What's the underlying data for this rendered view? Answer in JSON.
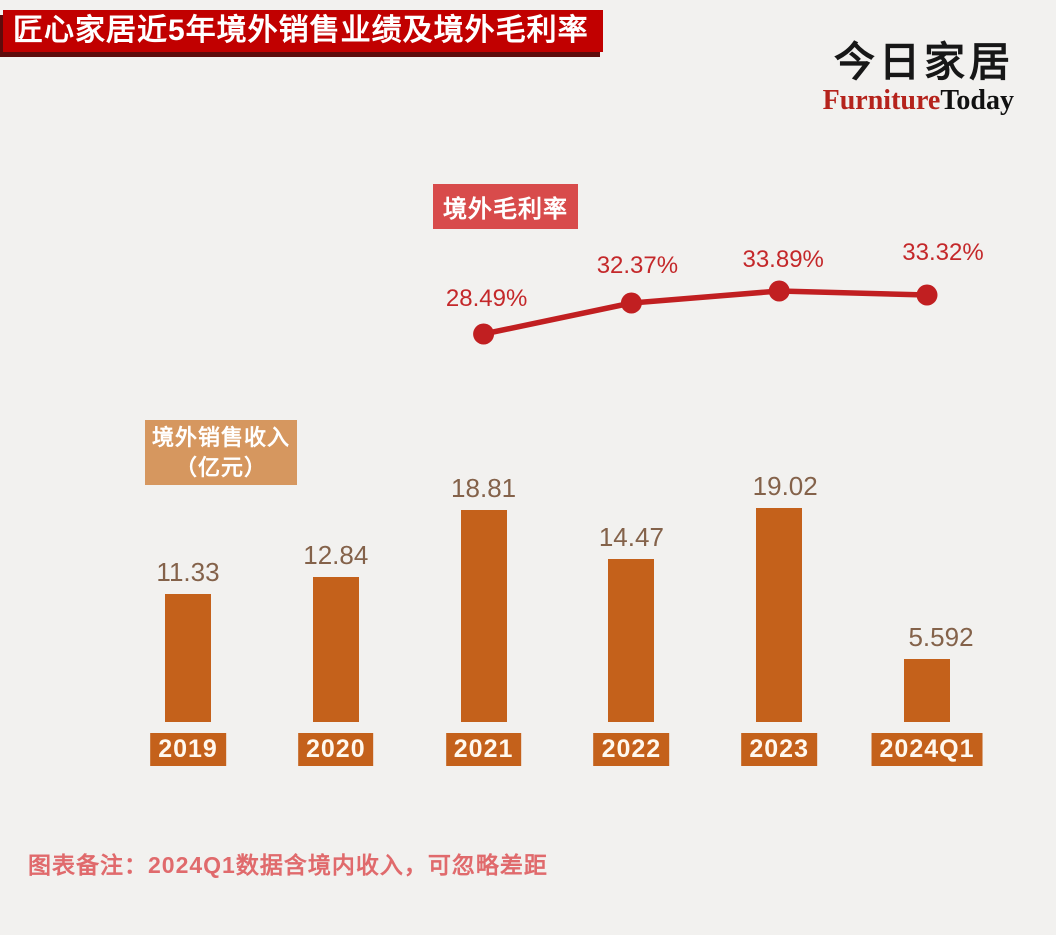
{
  "header": {
    "title": "匠心家居近5年境外销售业绩及境外毛利率",
    "logo_cn": "今日家居",
    "logo_en_red": "Furniture",
    "logo_en_black": "Today"
  },
  "chart_data": {
    "type": "bar",
    "title": "匠心家居近5年境外销售业绩及境外毛利率",
    "categories": [
      "2019",
      "2020",
      "2021",
      "2022",
      "2023",
      "2024Q1"
    ],
    "series": [
      {
        "name": "境外销售收入（亿元）",
        "type": "bar",
        "values": [
          11.33,
          12.84,
          18.81,
          14.47,
          19.02,
          5.592
        ],
        "value_labels": [
          "11.33",
          "12.84",
          "18.81",
          "14.47",
          "19.02",
          "5.592"
        ],
        "color": "#c4611b"
      },
      {
        "name": "境外毛利率",
        "type": "line",
        "categories": [
          "2021",
          "2022",
          "2023",
          "2024Q1"
        ],
        "values": [
          28.49,
          32.37,
          33.89,
          33.32
        ],
        "value_labels": [
          "28.49%",
          "32.37%",
          "33.89%",
          "33.32%"
        ],
        "color": "#c11f21"
      }
    ],
    "legend": {
      "line_label": "境外毛利率",
      "bar_label_line1": "境外销售收入",
      "bar_label_line2": "（亿元）"
    },
    "xlabel": "",
    "ylabel": "",
    "grid": "off",
    "notes": "bar value labels above bars; line point labels above markers; category labels shown as orange badges under bars"
  },
  "footer": {
    "note": "图表备注：2024Q1数据含境内收入，可忽略差距"
  },
  "colors": {
    "background": "#f2f1ef",
    "banner_red": "#c10000",
    "banner_shadow": "#5e0b0b",
    "line_red": "#c11f21",
    "pct_label_red": "#c4282a",
    "margin_badge_red": "#d84b4b",
    "bar_orange": "#c4611b",
    "sales_badge_tan": "#d6975f",
    "bar_value_brown": "#84624a",
    "footer_salmon": "#e06a6c",
    "logo_red": "#b5231c"
  }
}
